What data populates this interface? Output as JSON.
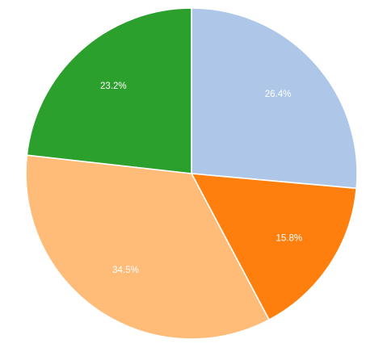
{
  "chart_data": {
    "type": "pie",
    "title": "",
    "slices": [
      {
        "value": 26.4,
        "label": "26.4%",
        "color": "#aec7e8"
      },
      {
        "value": 15.8,
        "label": "15.8%",
        "color": "#ff7f0e"
      },
      {
        "value": 34.5,
        "label": "34.5%",
        "color": "#ffbb78"
      },
      {
        "value": 23.2,
        "label": "23.2%",
        "color": "#2ca02c"
      }
    ],
    "start_angle": "12 o'clock",
    "direction": "clockwise",
    "legend": "none"
  }
}
